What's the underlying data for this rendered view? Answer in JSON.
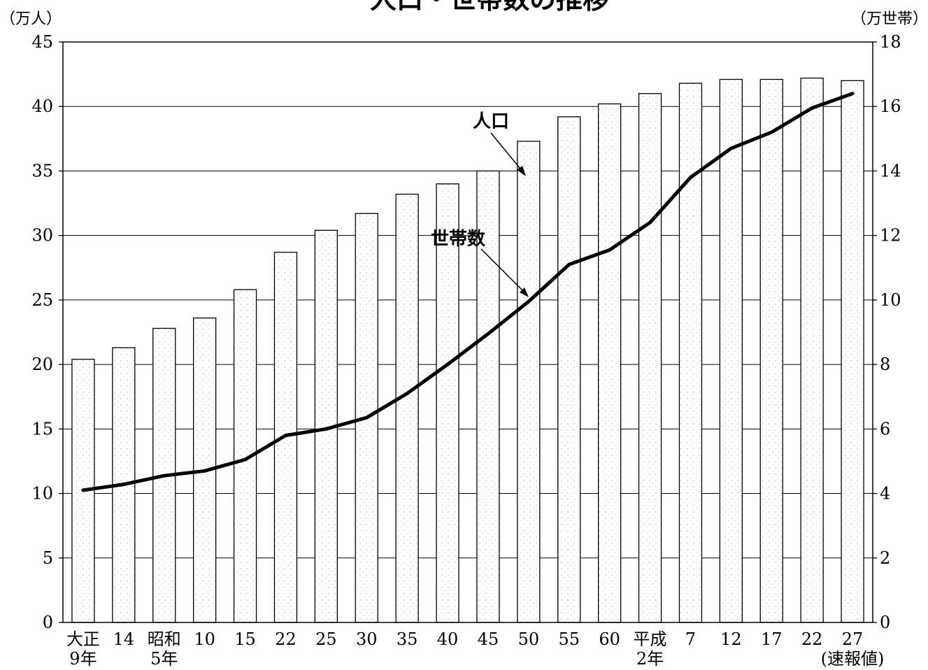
{
  "chart_data": {
    "type": "bar+line",
    "title": "人口・世帯数の推移",
    "left_axis_unit": "（万人）",
    "right_axis_unit": "（万世帯）",
    "left_ylim": [
      0,
      45
    ],
    "right_ylim": [
      0,
      18
    ],
    "left_ticks": [
      "0",
      "5",
      "10",
      "15",
      "20",
      "25",
      "30",
      "35",
      "40",
      "45"
    ],
    "right_ticks": [
      "0",
      "2",
      "4",
      "6",
      "8",
      "10",
      "12",
      "14",
      "16",
      "18"
    ],
    "grid": true,
    "categories": [
      {
        "line1": "大正",
        "line2": "9年"
      },
      {
        "line1": "14",
        "line2": ""
      },
      {
        "line1": "昭和",
        "line2": "5年"
      },
      {
        "line1": "10",
        "line2": ""
      },
      {
        "line1": "15",
        "line2": ""
      },
      {
        "line1": "22",
        "line2": ""
      },
      {
        "line1": "25",
        "line2": ""
      },
      {
        "line1": "30",
        "line2": ""
      },
      {
        "line1": "35",
        "line2": ""
      },
      {
        "line1": "40",
        "line2": ""
      },
      {
        "line1": "45",
        "line2": ""
      },
      {
        "line1": "50",
        "line2": ""
      },
      {
        "line1": "55",
        "line2": ""
      },
      {
        "line1": "60",
        "line2": ""
      },
      {
        "line1": "平成",
        "line2": "2年"
      },
      {
        "line1": "7",
        "line2": ""
      },
      {
        "line1": "12",
        "line2": ""
      },
      {
        "line1": "17",
        "line2": ""
      },
      {
        "line1": "22",
        "line2": ""
      },
      {
        "line1": "27",
        "line2": "(速報値)"
      }
    ],
    "series": [
      {
        "name": "人口",
        "kind": "bar",
        "axis": "left",
        "values": [
          20.4,
          21.3,
          22.8,
          23.6,
          25.8,
          28.7,
          30.4,
          31.7,
          33.2,
          34.0,
          35.0,
          37.3,
          39.2,
          40.2,
          41.0,
          41.8,
          42.1,
          42.1,
          42.2,
          42.0
        ]
      },
      {
        "name": "世帯数",
        "kind": "line",
        "axis": "right",
        "values": [
          4.1,
          4.28,
          4.55,
          4.7,
          5.05,
          5.8,
          6.0,
          6.35,
          7.1,
          8.0,
          8.95,
          9.95,
          11.1,
          11.55,
          12.4,
          13.8,
          14.7,
          15.2,
          15.95,
          16.4
        ]
      }
    ]
  },
  "annotations": {
    "population_label": "人口",
    "households_label": "世帯数"
  }
}
